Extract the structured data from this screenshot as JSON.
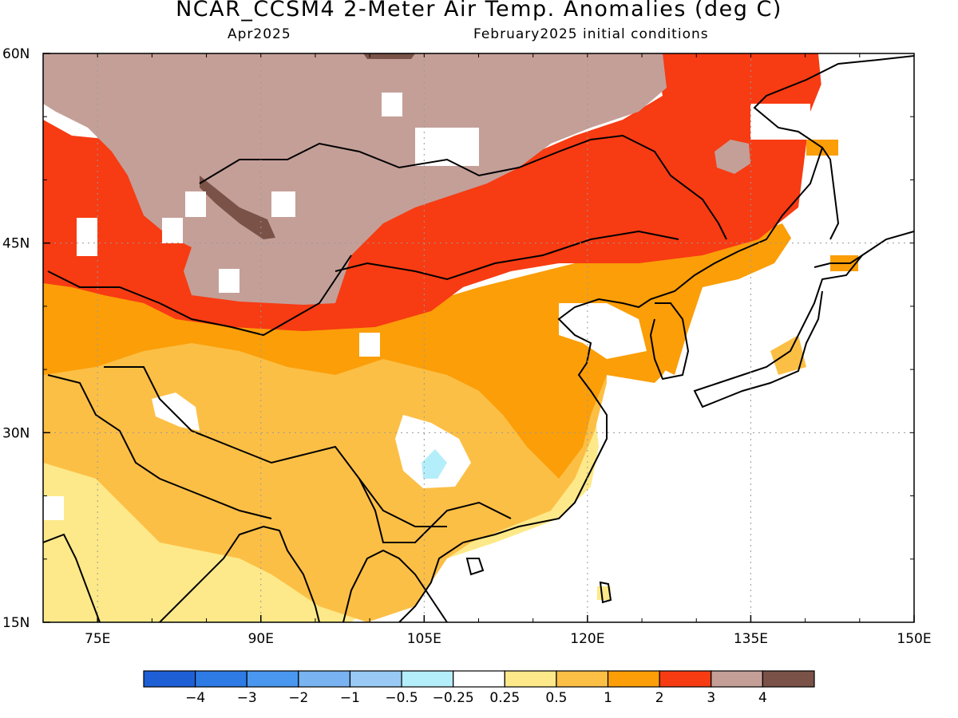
{
  "header": {
    "title": "NCAR_CCSM4 2-Meter Air Temp. Anomalies (deg C)",
    "valid_month": "Apr2025",
    "init_conditions": "February2025 initial conditions"
  },
  "map": {
    "lon_range": [
      70,
      150
    ],
    "lat_range": [
      15,
      60
    ],
    "lon_ticks": [
      {
        "value": 75,
        "label": "75E"
      },
      {
        "value": 90,
        "label": "90E"
      },
      {
        "value": 105,
        "label": "105E"
      },
      {
        "value": 120,
        "label": "120E"
      },
      {
        "value": 135,
        "label": "135E"
      },
      {
        "value": 150,
        "label": "150E"
      }
    ],
    "lat_ticks": [
      {
        "value": 60,
        "label": "60N"
      },
      {
        "value": 45,
        "label": "45N"
      },
      {
        "value": 30,
        "label": "30N"
      },
      {
        "value": 15,
        "label": "15N"
      }
    ],
    "gridlines": "dotted"
  },
  "colorbar": {
    "colors": [
      "#1f5fd6",
      "#2e7be6",
      "#4a97ef",
      "#79b3f2",
      "#98caf5",
      "#b5eefb",
      "#ffffff",
      "#fde989",
      "#fcbf45",
      "#fb9e08",
      "#f73b13",
      "#c49f98",
      "#7a5247"
    ],
    "labels": [
      "-4",
      "-3",
      "-2",
      "-1",
      "-0.5",
      "-0.25",
      "0.25",
      "0.5",
      "1",
      "2",
      "3",
      "4"
    ]
  }
}
